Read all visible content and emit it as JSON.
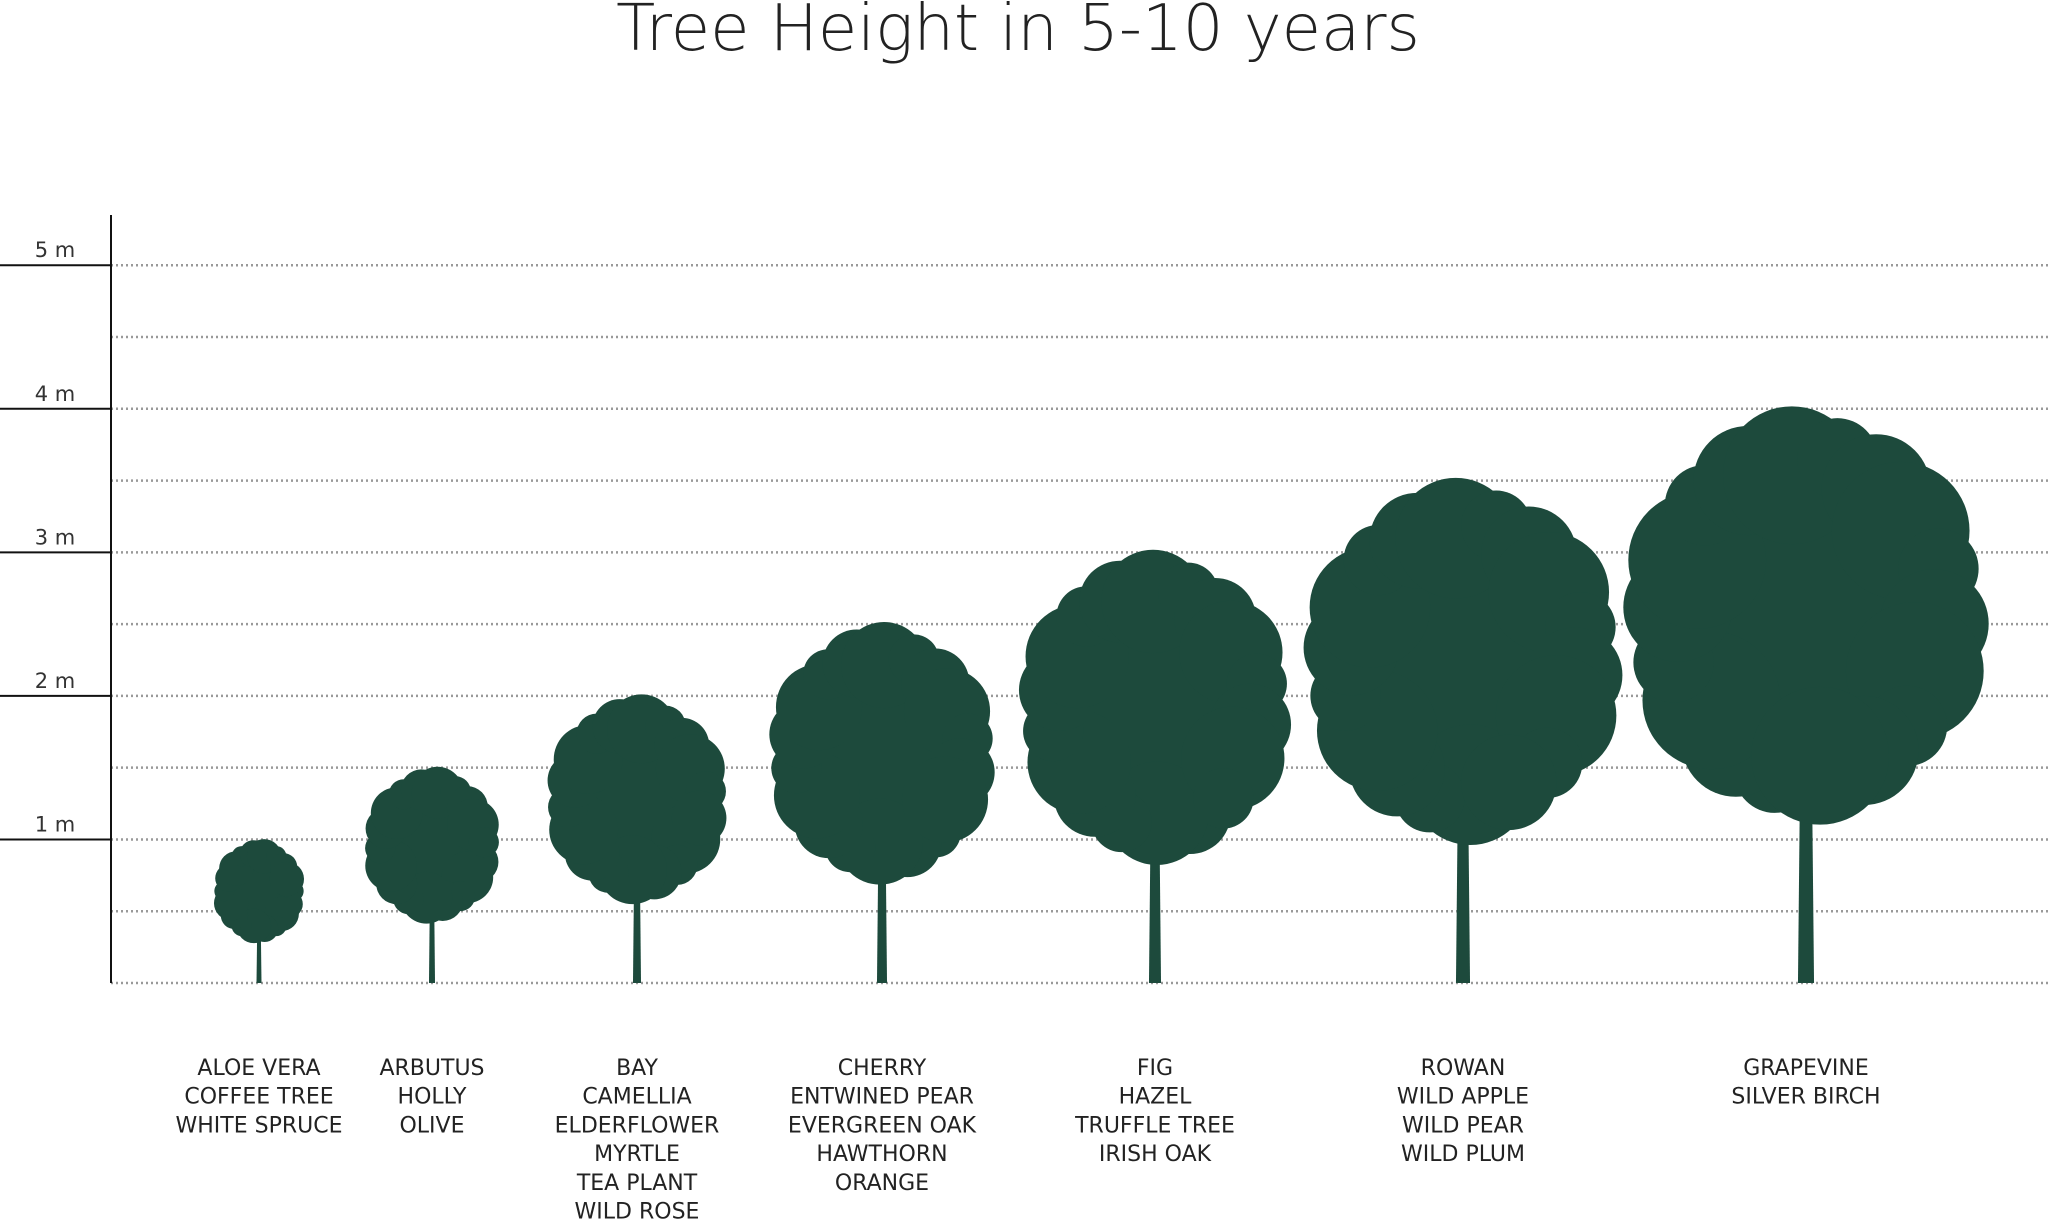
{
  "chart_data": {
    "type": "tree",
    "title": "Tree Height in 5-10 years",
    "categories": [
      [
        "ALOE VERA",
        "COFFEE TREE",
        "WHITE SPRUCE"
      ],
      [
        "ARBUTUS",
        "HOLLY",
        "OLIVE"
      ],
      [
        "BAY",
        "CAMELLIA",
        "ELDERFLOWER",
        "MYRTLE",
        "TEA PLANT",
        "WILD ROSE"
      ],
      [
        "CHERRY",
        "ENTWINED PEAR",
        "EVERGREEN OAK",
        "HAWTHORN",
        "ORANGE"
      ],
      [
        "FIG",
        "HAZEL",
        "TRUFFLE TREE",
        "IRISH OAK"
      ],
      [
        "ROWAN",
        "WILD APPLE",
        "WILD PEAR",
        "WILD PLUM"
      ],
      [
        "GRAPEVINE",
        "SILVER BIRCH"
      ]
    ],
    "values": [
      1,
      1.5,
      2,
      2.5,
      3,
      3.5,
      4
    ],
    "color": "#1d4a3c",
    "ylim": [
      0,
      5.35
    ],
    "yticks": [
      {
        "value": 1,
        "label": "1 m"
      },
      {
        "value": 2,
        "label": "2 m"
      },
      {
        "value": 3,
        "label": "3 m"
      },
      {
        "value": 4,
        "label": "4 m"
      },
      {
        "value": 5,
        "label": "5 m"
      }
    ],
    "minor_yticks": [
      0,
      0.5,
      1.5,
      2.5,
      3.5,
      4.5
    ],
    "grid": true
  }
}
